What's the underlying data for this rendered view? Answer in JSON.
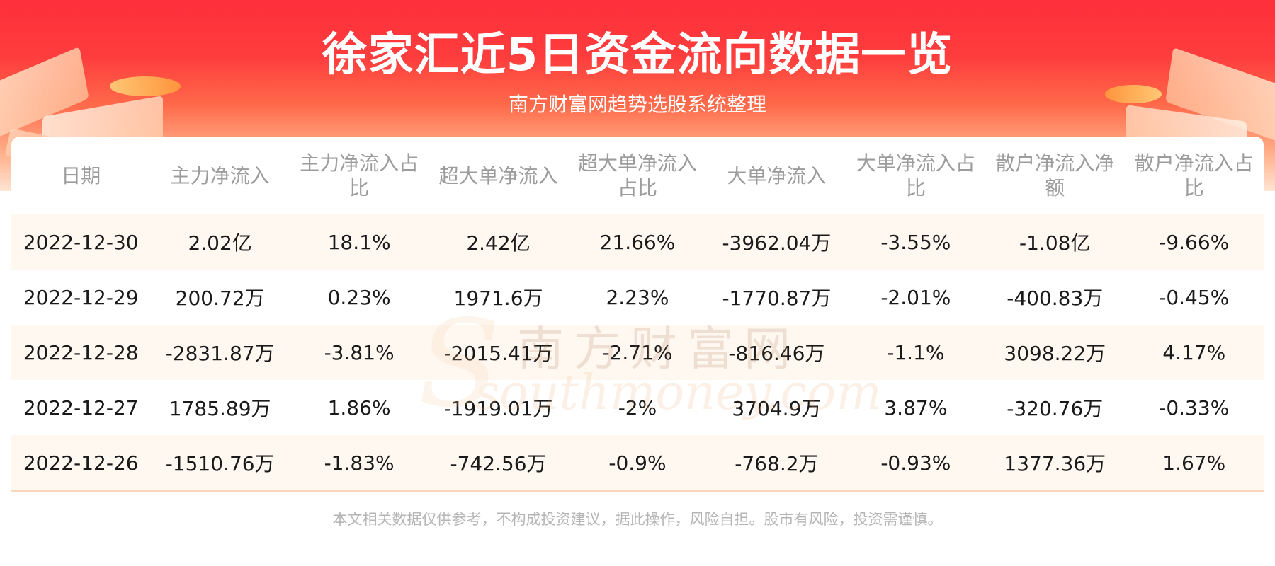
{
  "header": {
    "title": "徐家汇近5日资金流向数据一览",
    "subtitle": "南方财富网趋势选股系统整理"
  },
  "chart_data": {
    "type": "table",
    "title": "徐家汇近5日资金流向数据一览",
    "subtitle": "南方财富网趋势选股系统整理",
    "columns": [
      "日期",
      "主力净流入",
      "主力净流入占比",
      "超大单净流入",
      "超大单净流入占比",
      "大单净流入",
      "大单净流入占比",
      "散户净流入净额",
      "散户净流入占比"
    ],
    "rows": [
      [
        "2022-12-30",
        "2.02亿",
        "18.1%",
        "2.42亿",
        "21.66%",
        "-3962.04万",
        "-3.55%",
        "-1.08亿",
        "-9.66%"
      ],
      [
        "2022-12-29",
        "200.72万",
        "0.23%",
        "1971.6万",
        "2.23%",
        "-1770.87万",
        "-2.01%",
        "-400.83万",
        "-0.45%"
      ],
      [
        "2022-12-28",
        "-2831.87万",
        "-3.81%",
        "-2015.41万",
        "-2.71%",
        "-816.46万",
        "-1.1%",
        "3098.22万",
        "4.17%"
      ],
      [
        "2022-12-27",
        "1785.89万",
        "1.86%",
        "-1919.01万",
        "-2%",
        "3704.9万",
        "3.87%",
        "-320.76万",
        "-0.33%"
      ],
      [
        "2022-12-26",
        "-1510.76万",
        "-1.83%",
        "-742.56万",
        "-0.9%",
        "-768.2万",
        "-0.93%",
        "1377.36万",
        "1.67%"
      ]
    ]
  },
  "watermark": {
    "text_cn": "南方财富网",
    "text_en": "southmoney.com"
  },
  "footer": {
    "disclaimer": "本文相关数据仅供参考，不构成投资建议，据此操作，风险自担。股市有风险，投资需谨慎。"
  },
  "colors": {
    "header_red": "#fd2f3b",
    "row_tint": "#fff8f1",
    "header_text": "#9c9c9c",
    "cell_text": "#1a1a1a"
  }
}
